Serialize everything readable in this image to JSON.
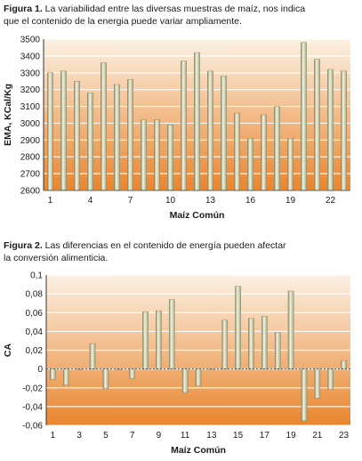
{
  "chart_data": [
    {
      "type": "bar",
      "caption_lead": "Figura 1.",
      "caption_text": " La variabilidad entre las diversas muestras de maíz, nos indica\nque el contenido de la energia puede variar ampliamente.",
      "xlabel": "Maíz Común",
      "ylabel": "EMA, KCal/Kg",
      "ylim": [
        2600,
        3500
      ],
      "yticks": [
        "2600",
        "2700",
        "2800",
        "2900",
        "3000",
        "3100",
        "3200",
        "3300",
        "3400",
        "3500"
      ],
      "xticks": [
        "1",
        "4",
        "7",
        "10",
        "13",
        "16",
        "19",
        "22"
      ],
      "xtick_positions": [
        1,
        4,
        7,
        10,
        13,
        16,
        19,
        22
      ],
      "categories": [
        1,
        2,
        3,
        4,
        5,
        6,
        7,
        8,
        9,
        10,
        11,
        12,
        13,
        14,
        15,
        16,
        17,
        18,
        19,
        20,
        21,
        22,
        23
      ],
      "values": [
        3300,
        3310,
        3250,
        3180,
        3360,
        3230,
        3260,
        3020,
        3020,
        2990,
        3370,
        3420,
        3310,
        3280,
        3060,
        2910,
        3050,
        3100,
        2910,
        3480,
        3380,
        3320,
        3310
      ],
      "bar_color": "#c9c9a5",
      "background_gradient": [
        "#fbf1e4",
        "#e9852e"
      ]
    },
    {
      "type": "bar",
      "caption_lead": "Figura 2.",
      "caption_text": " Las diferencias en el contenido de energía pueden afectar\nla conversión alimenticia.",
      "xlabel": "Maíz Común",
      "ylabel": "CA",
      "ylim": [
        -0.06,
        0.1
      ],
      "yticks": [
        "-0,06",
        "-0,04",
        "-0,02",
        "0",
        "0,02",
        "0,04",
        "0,06",
        "0,08",
        "0,1"
      ],
      "xticks": [
        "1",
        "3",
        "5",
        "7",
        "9",
        "11",
        "13",
        "15",
        "17",
        "19",
        "21",
        "23"
      ],
      "xtick_positions": [
        1,
        3,
        5,
        7,
        9,
        11,
        13,
        15,
        17,
        19,
        21,
        23
      ],
      "categories": [
        1,
        2,
        3,
        4,
        5,
        6,
        7,
        8,
        9,
        10,
        11,
        12,
        13,
        14,
        15,
        16,
        17,
        18,
        19,
        20,
        21,
        22,
        23
      ],
      "values": [
        -0.011,
        -0.017,
        0.0,
        0.027,
        -0.021,
        0.0,
        -0.01,
        0.061,
        0.062,
        0.074,
        -0.025,
        -0.018,
        0.0,
        0.052,
        0.088,
        0.054,
        0.056,
        0.039,
        0.083,
        -0.055,
        -0.031,
        -0.022,
        0.009
      ],
      "bar_color": "#c9c9a5",
      "background_gradient": [
        "#fbf1e4",
        "#e9852e"
      ]
    }
  ]
}
